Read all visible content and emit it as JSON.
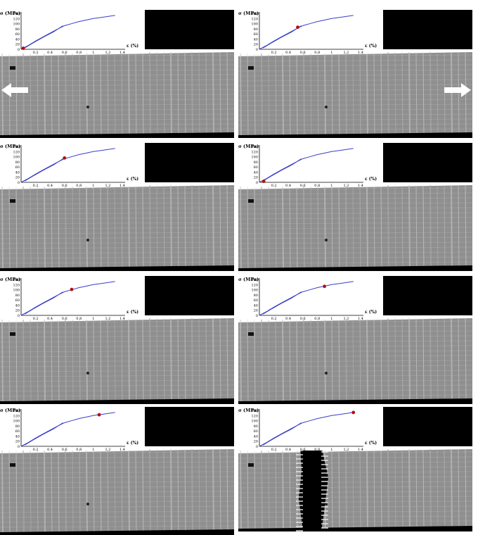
{
  "figure": {
    "axis_labels": {
      "y": "σ (MPa)",
      "x": "ε (%)"
    },
    "y_ticks": [
      "140",
      "120",
      "100",
      "80",
      "60",
      "40",
      "20",
      "0"
    ],
    "x_ticks": [
      "0.2",
      "0.4",
      "0.6",
      "0.8",
      "1",
      "1.2",
      "1.4"
    ],
    "load_arrows": [
      "left",
      "right"
    ],
    "colors": {
      "curve": "#3a3ec8",
      "marker": "#b01010",
      "scan_bg": "#8f8f8f",
      "black": "#000000"
    }
  },
  "chart_data": {
    "type": "line",
    "xlabel": "ε (%)",
    "ylabel": "σ (MPa)",
    "xlim": [
      0,
      1.4
    ],
    "ylim": [
      0,
      140
    ],
    "series": [
      {
        "x": [
          0,
          0.1,
          0.2,
          0.3,
          0.4,
          0.5,
          0.6,
          0.7,
          0.8,
          0.9,
          1.0,
          1.1,
          1.2,
          1.3
        ],
        "y": [
          0,
          15,
          32,
          48,
          63,
          78,
          92,
          100,
          108,
          114,
          120,
          124,
          128,
          132
        ]
      },
      {
        "x": [
          0.58,
          0.45,
          0.3,
          0.15,
          0.05
        ],
        "y": [
          92,
          68,
          46,
          22,
          5
        ]
      }
    ],
    "markers": [
      {
        "panel": 1,
        "x": 0.03,
        "y": 4
      },
      {
        "panel": 2,
        "x": 0.53,
        "y": 86
      },
      {
        "panel": 3,
        "x": 0.6,
        "y": 95
      },
      {
        "panel": 4,
        "x": 0.06,
        "y": 4
      },
      {
        "panel": 5,
        "x": 0.7,
        "y": 101
      },
      {
        "panel": 6,
        "x": 0.9,
        "y": 113
      },
      {
        "panel": 7,
        "x": 1.08,
        "y": 123
      },
      {
        "panel": 8,
        "x": 1.3,
        "y": 132
      }
    ]
  }
}
